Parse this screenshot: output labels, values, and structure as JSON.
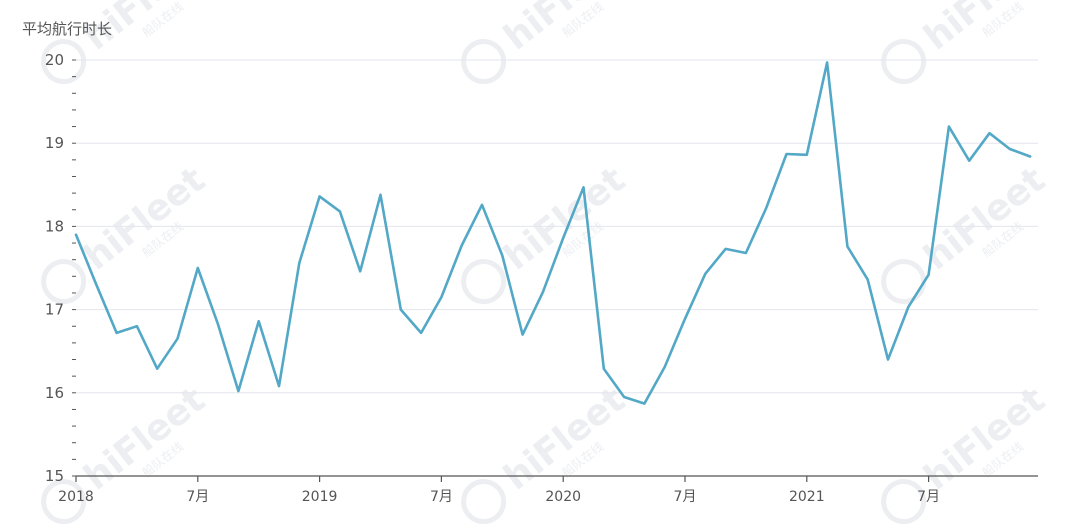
{
  "chart_data": {
    "type": "line",
    "ylabel": "平均航行时长",
    "ylim": [
      15,
      20
    ],
    "yticks": [
      15,
      16,
      17,
      18,
      19,
      20
    ],
    "x_tick_labels": [
      "2018",
      "7月",
      "2019",
      "7月",
      "2020",
      "7月",
      "2021",
      "7月"
    ],
    "x_tick_months": [
      "2018-01",
      "2018-07",
      "2019-01",
      "2019-07",
      "2020-01",
      "2020-07",
      "2021-01",
      "2021-07"
    ],
    "x": [
      "2018-01",
      "2018-02",
      "2018-03",
      "2018-04",
      "2018-05",
      "2018-06",
      "2018-07",
      "2018-08",
      "2018-09",
      "2018-10",
      "2018-11",
      "2018-12",
      "2019-01",
      "2019-02",
      "2019-03",
      "2019-04",
      "2019-05",
      "2019-06",
      "2019-07",
      "2019-08",
      "2019-09",
      "2019-10",
      "2019-11",
      "2019-12",
      "2020-01",
      "2020-02",
      "2020-03",
      "2020-04",
      "2020-05",
      "2020-06",
      "2020-07",
      "2020-08",
      "2020-09",
      "2020-10",
      "2020-11",
      "2020-12",
      "2021-01",
      "2021-02",
      "2021-03",
      "2021-04",
      "2021-05",
      "2021-06",
      "2021-07",
      "2021-08",
      "2021-09",
      "2021-10",
      "2021-11",
      "2021-12"
    ],
    "series": [
      {
        "color": "#52a8c6",
        "values": [
          17.9,
          17.3,
          16.72,
          16.8,
          16.29,
          16.65,
          17.5,
          16.82,
          16.02,
          16.86,
          16.08,
          17.56,
          18.36,
          18.18,
          17.46,
          18.38,
          17.0,
          16.72,
          17.15,
          17.77,
          18.26,
          17.65,
          16.7,
          17.21,
          17.86,
          18.47,
          16.29,
          15.95,
          15.87,
          16.31,
          16.89,
          17.43,
          17.73,
          17.68,
          18.22,
          18.87,
          18.86,
          19.97,
          17.76,
          17.36,
          16.4,
          17.03,
          17.42,
          19.2,
          18.79,
          19.12,
          18.93,
          18.84
        ]
      }
    ],
    "grid": true,
    "watermark": "hiFleet",
    "watermark_sub": "船队在线"
  }
}
